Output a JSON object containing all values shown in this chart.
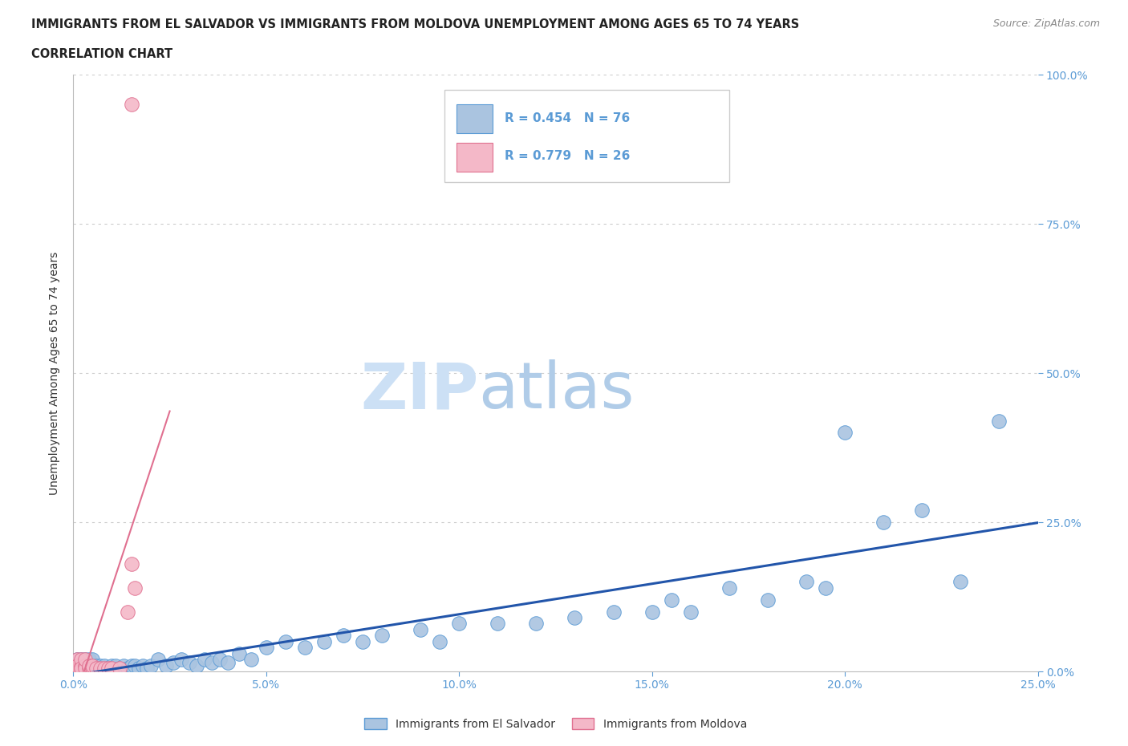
{
  "title_line1": "IMMIGRANTS FROM EL SALVADOR VS IMMIGRANTS FROM MOLDOVA UNEMPLOYMENT AMONG AGES 65 TO 74 YEARS",
  "title_line2": "CORRELATION CHART",
  "source_text": "Source: ZipAtlas.com",
  "ylabel": "Unemployment Among Ages 65 to 74 years",
  "xlim": [
    0.0,
    0.25
  ],
  "ylim": [
    0.0,
    1.0
  ],
  "el_salvador_color": "#aac4e0",
  "el_salvador_edge": "#5b9bd5",
  "moldova_color": "#f4b8c8",
  "moldova_edge": "#e07090",
  "regression_es_color": "#2255aa",
  "regression_md_color": "#e07090",
  "legend_label_el_salvador": "Immigrants from El Salvador",
  "legend_label_moldova": "Immigrants from Moldova",
  "background_color": "#ffffff",
  "grid_color": "#cccccc",
  "title_color": "#222222",
  "tick_color": "#5b9bd5",
  "source_color": "#888888",
  "ylabel_color": "#333333",
  "watermark_zip_color": "#cce0f5",
  "watermark_atlas_color": "#b0cce8",
  "es_x": [
    0.001,
    0.001,
    0.001,
    0.001,
    0.002,
    0.002,
    0.002,
    0.002,
    0.002,
    0.003,
    0.003,
    0.003,
    0.003,
    0.004,
    0.004,
    0.004,
    0.005,
    0.005,
    0.005,
    0.006,
    0.006,
    0.007,
    0.007,
    0.008,
    0.008,
    0.009,
    0.01,
    0.01,
    0.011,
    0.012,
    0.013,
    0.014,
    0.015,
    0.016,
    0.017,
    0.018,
    0.019,
    0.02,
    0.022,
    0.024,
    0.026,
    0.028,
    0.03,
    0.032,
    0.034,
    0.036,
    0.038,
    0.04,
    0.043,
    0.046,
    0.05,
    0.055,
    0.06,
    0.065,
    0.07,
    0.075,
    0.08,
    0.09,
    0.095,
    0.1,
    0.11,
    0.12,
    0.13,
    0.14,
    0.15,
    0.155,
    0.16,
    0.17,
    0.18,
    0.19,
    0.195,
    0.2,
    0.21,
    0.22,
    0.23,
    0.24
  ],
  "es_y": [
    0.005,
    0.01,
    0.02,
    0.005,
    0.005,
    0.01,
    0.02,
    0.005,
    0.01,
    0.005,
    0.01,
    0.02,
    0.005,
    0.01,
    0.005,
    0.02,
    0.01,
    0.005,
    0.02,
    0.005,
    0.01,
    0.005,
    0.01,
    0.005,
    0.01,
    0.005,
    0.01,
    0.005,
    0.01,
    0.005,
    0.01,
    0.005,
    0.01,
    0.01,
    0.005,
    0.01,
    0.005,
    0.01,
    0.02,
    0.01,
    0.015,
    0.02,
    0.015,
    0.01,
    0.02,
    0.015,
    0.02,
    0.015,
    0.03,
    0.02,
    0.04,
    0.05,
    0.04,
    0.05,
    0.06,
    0.05,
    0.06,
    0.07,
    0.05,
    0.08,
    0.08,
    0.08,
    0.09,
    0.1,
    0.1,
    0.12,
    0.1,
    0.14,
    0.12,
    0.15,
    0.14,
    0.4,
    0.25,
    0.27,
    0.15,
    0.42
  ],
  "md_x": [
    0.001,
    0.001,
    0.001,
    0.001,
    0.001,
    0.002,
    0.002,
    0.002,
    0.002,
    0.003,
    0.003,
    0.003,
    0.004,
    0.004,
    0.005,
    0.005,
    0.006,
    0.007,
    0.008,
    0.009,
    0.01,
    0.012,
    0.014,
    0.016,
    0.015,
    0.015
  ],
  "md_y": [
    0.005,
    0.01,
    0.02,
    0.005,
    0.01,
    0.005,
    0.01,
    0.02,
    0.005,
    0.01,
    0.005,
    0.02,
    0.005,
    0.01,
    0.005,
    0.01,
    0.005,
    0.005,
    0.005,
    0.005,
    0.005,
    0.005,
    0.1,
    0.14,
    0.18,
    0.95
  ]
}
